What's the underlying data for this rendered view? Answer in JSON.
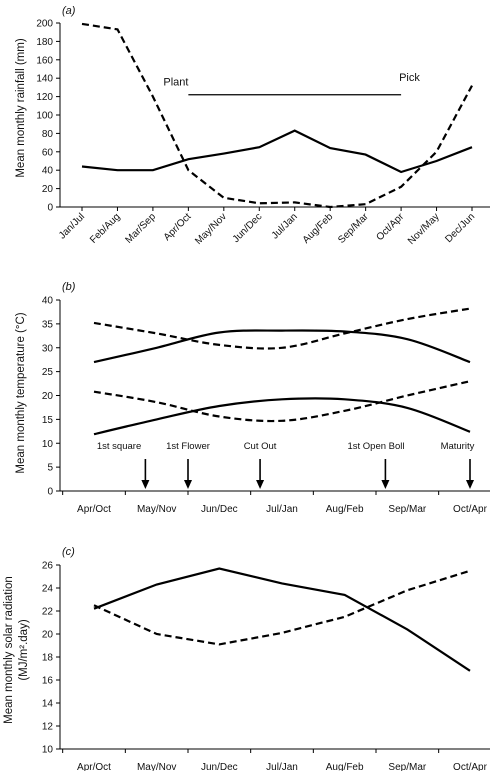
{
  "chart_data": [
    {
      "type": "line",
      "panel_label": "(a)",
      "ylabel": "Mean monthly rainfall (mm)",
      "ylim": [
        0,
        200
      ],
      "yticks": [
        0,
        20,
        40,
        60,
        80,
        100,
        120,
        140,
        160,
        180,
        200
      ],
      "categories": [
        "Jan/Jul",
        "Feb/Aug",
        "Mar/Sep",
        "Apr/Oct",
        "May/Nov",
        "Jun/Dec",
        "Jul/Jan",
        "Aug/Feb",
        "Sep/Mar",
        "Oct/Apr",
        "Nov/May",
        "Dec/Jun"
      ],
      "series": [
        {
          "style": "solid",
          "values": [
            44,
            40,
            40,
            52,
            58,
            65,
            83,
            64,
            57,
            38,
            50,
            65
          ]
        },
        {
          "style": "dashed",
          "values": [
            199,
            193,
            120,
            40,
            10,
            4,
            5,
            0,
            3,
            22,
            60,
            132
          ]
        }
      ],
      "annotations": [
        {
          "text": "Plant",
          "x": "Apr/Oct",
          "y": 132
        },
        {
          "text": "Pick",
          "x": "Oct/Apr",
          "y": 137
        }
      ],
      "season_bar": {
        "from": "Apr/Oct",
        "to": "Oct/Apr",
        "y": 122
      }
    },
    {
      "type": "line",
      "panel_label": "(b)",
      "ylabel": "Mean monthly temperature (°C)",
      "ylim": [
        0,
        40
      ],
      "yticks": [
        0,
        5,
        10,
        15,
        20,
        25,
        30,
        35,
        40
      ],
      "categories": [
        "Apr/Oct",
        "May/Nov",
        "Jun/Dec",
        "Jul/Jan",
        "Aug/Feb",
        "Sep/Mar",
        "Oct/Apr"
      ],
      "series": [
        {
          "style": "solid",
          "values": [
            27,
            30,
            33.2,
            33.6,
            33.4,
            31.8,
            27
          ]
        },
        {
          "style": "dashed",
          "values": [
            35.2,
            33,
            30.6,
            30,
            33,
            36,
            38.2
          ]
        },
        {
          "style": "solid",
          "values": [
            11.9,
            15,
            17.8,
            19.2,
            19.2,
            17.4,
            12.4
          ]
        },
        {
          "style": "dashed",
          "values": [
            20.8,
            18.6,
            15.6,
            14.7,
            16.8,
            20,
            23
          ]
        }
      ],
      "stages": [
        {
          "label": "1st square",
          "x": 0.4,
          "label_x": 0.4,
          "arrow_x": 0.82
        },
        {
          "label": "1st Flower",
          "x": 1.5,
          "label_x": 1.5,
          "arrow_x": 1.5
        },
        {
          "label": "Cut Out",
          "x": 2.65,
          "label_x": 2.65,
          "arrow_x": 2.65
        },
        {
          "label": "1st Open Boll",
          "x": 4.5,
          "label_x": 4.5,
          "arrow_x": 4.65
        },
        {
          "label": "Maturity",
          "x": 5.8,
          "label_x": 5.8,
          "arrow_x": 6.0
        }
      ]
    },
    {
      "type": "line",
      "panel_label": "(c)",
      "ylabel_line1": "Mean monthly solar radiation",
      "ylabel_line2": "(MJ/m².day)",
      "ylim": [
        10,
        26
      ],
      "yticks": [
        10,
        12,
        14,
        16,
        18,
        20,
        22,
        24,
        26
      ],
      "categories": [
        "Apr/Oct",
        "May/Nov",
        "Jun/Dec",
        "Jul/Jan",
        "Aug/Feb",
        "Sep/Mar",
        "Oct/Apr"
      ],
      "series": [
        {
          "style": "solid",
          "values": [
            22.2,
            24.3,
            25.7,
            24.4,
            23.4,
            20.4,
            16.8
          ]
        },
        {
          "style": "dashed",
          "values": [
            22.5,
            20,
            19.1,
            20.1,
            21.5,
            23.8,
            25.5
          ]
        }
      ]
    }
  ]
}
